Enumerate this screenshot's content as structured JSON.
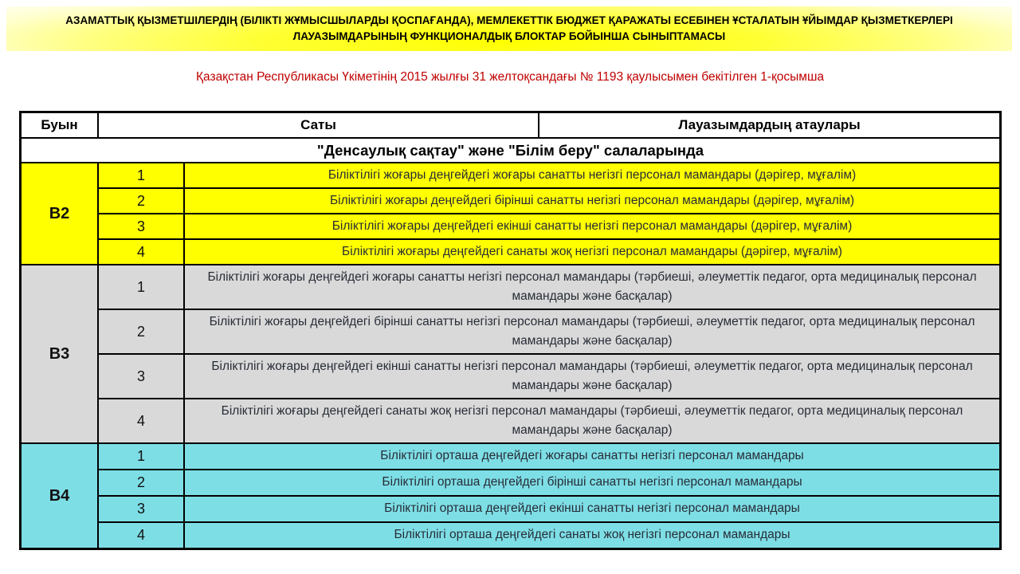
{
  "banner": {
    "title": "АЗАМАТТЫҚ ҚЫЗМЕТШІЛЕРДІҢ (БІЛІКТІ ЖҰМЫСШЫЛАРДЫ ҚОСПАҒАНДА), МЕМЛЕКЕТТІК БЮДЖЕТ ҚАРАЖАТЫ ЕСЕБІНЕН ҰСТАЛАТЫН ҰЙЫМДАР ҚЫЗМЕТКЕРЛЕРІ ЛАУАЗЫМДАРЫНЫҢ ФУНКЦИОНАЛДЫҚ БЛОКТАР БОЙЫНША СЫНЫПТАМАСЫ",
    "background_color": "#ffff00"
  },
  "decree": {
    "text": "Қазақстан Республикасы Үкіметінің 2015 жылғы 31 желтоқсандағы № 1193 қаулысымен бекітілген 1-қосымша",
    "color": "#c00000"
  },
  "table": {
    "headers": {
      "col1": "Буын",
      "col2": "Саты",
      "col3": "Лауазымдардың атаулары"
    },
    "section_title": "\"Денсаулық сақтау\" және \"Білім беру\" салаларында",
    "border_color": "#000000",
    "groups": [
      {
        "code": "В2",
        "color": "#ffff00",
        "rows": [
          {
            "num": "1",
            "text": "Біліктілігі жоғары деңгейдегі жоғары санатты негізгі персонал мамандары (дәрігер, мұғалім)"
          },
          {
            "num": "2",
            "text": "Біліктілігі жоғары деңгейдегі бірінші санатты негізгі персонал мамандары (дәрігер, мұғалім)"
          },
          {
            "num": "3",
            "text": "Біліктілігі жоғары деңгейдегі екінші санатты негізгі персонал мамандары (дәрігер, мұғалім)"
          },
          {
            "num": "4",
            "text": "Біліктілігі жоғары деңгейдегі санаты жоқ негізгі персонал мамандары (дәрігер, мұғалім)"
          }
        ]
      },
      {
        "code": "В3",
        "color": "#d9d9d9",
        "rows": [
          {
            "num": "1",
            "text": "Біліктілігі жоғары деңгейдегі жоғары санатты негізгі персонал мамандары (тәрбиеші, әлеуметтік педагог, орта медициналық персонал мамандары және басқалар)"
          },
          {
            "num": "2",
            "text": "Біліктілігі жоғары деңгейдегі бірінші санатты негізгі персонал мамандары (тәрбиеші, әлеуметтік педагог, орта медициналық персонал мамандары және басқалар)"
          },
          {
            "num": "3",
            "text": "Біліктілігі жоғары деңгейдегі екінші санатты негізгі персонал мамандары (тәрбиеші, әлеуметтік педагог, орта медициналық персонал мамандары және басқалар)"
          },
          {
            "num": "4",
            "text": "Біліктілігі жоғары деңгейдегі санаты жоқ негізгі персонал мамандары (тәрбиеші, әлеуметтік педагог, орта медициналық персонал мамандары және басқалар)"
          }
        ]
      },
      {
        "code": "В4",
        "color": "#7edee6",
        "rows": [
          {
            "num": "1",
            "text": "Біліктілігі орташа деңгейдегі жоғары санатты негізгі персонал мамандары"
          },
          {
            "num": "2",
            "text": "Біліктілігі орташа деңгейдегі бірінші санатты негізгі персонал мамандары"
          },
          {
            "num": "3",
            "text": "Біліктілігі орташа деңгейдегі екінші санатты негізгі персонал мамандары"
          },
          {
            "num": "4",
            "text": "Біліктілігі орташа деңгейдегі санаты жоқ негізгі персонал мамандары"
          }
        ]
      }
    ]
  }
}
